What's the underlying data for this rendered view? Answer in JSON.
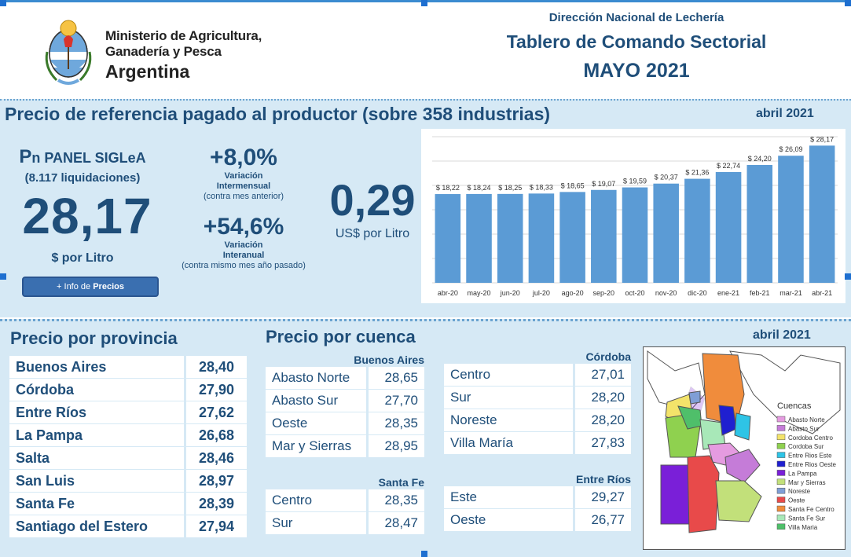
{
  "header": {
    "ministry_line1": "Ministerio de Agricultura,",
    "ministry_line2": "Ganadería y Pesca",
    "ministry_line3": "Argentina",
    "direction": "Dirección Nacional de Lechería",
    "title": "Tablero de Comando Sectorial",
    "month": "MAYO 2021"
  },
  "reference": {
    "title": "Precio de referencia pagado al productor (sobre 358 industrias)",
    "date": "abril 2021",
    "pn_prefix": "P",
    "pn_label": "n PANEL SIGLeA",
    "liquidaciones": "(8.117 liquidaciones)",
    "price": "28,17",
    "price_unit": "$ por Litro",
    "info_button_prefix": "+ Info de ",
    "info_button_bold": "Precios",
    "var_mensual": "+8,0%",
    "var_mensual_label1": "Variación",
    "var_mensual_label2": "Intermensual",
    "var_mensual_sub": "(contra mes anterior)",
    "var_anual": "+54,6%",
    "var_anual_label1": "Variación",
    "var_anual_label2": "Interanual",
    "var_anual_sub": "(contra mismo mes año pasado)",
    "usd_value": "0,29",
    "usd_unit": "US$ por Litro"
  },
  "chart_data": {
    "type": "bar",
    "categories": [
      "abr-20",
      "may-20",
      "jun-20",
      "jul-20",
      "ago-20",
      "sep-20",
      "oct-20",
      "nov-20",
      "dic-20",
      "ene-21",
      "feb-21",
      "mar-21",
      "abr-21"
    ],
    "values": [
      18.22,
      18.24,
      18.25,
      18.33,
      18.65,
      19.07,
      19.59,
      20.37,
      21.36,
      22.74,
      24.2,
      26.09,
      28.17
    ],
    "labels": [
      "$ 18,22",
      "$ 18,24",
      "$ 18,25",
      "$ 18,33",
      "$ 18,65",
      "$ 19,07",
      "$ 19,59",
      "$ 20,37",
      "$ 21,36",
      "$ 22,74",
      "$ 24,20",
      "$ 26,09",
      "$ 28,17"
    ],
    "color": "#5b9bd5",
    "grid": true
  },
  "provincia": {
    "title": "Precio por provincia",
    "rows": [
      {
        "name": "Buenos Aires",
        "value": "28,40"
      },
      {
        "name": "Córdoba",
        "value": "27,90"
      },
      {
        "name": "Entre Ríos",
        "value": "27,62"
      },
      {
        "name": "La Pampa",
        "value": "26,68"
      },
      {
        "name": "Salta",
        "value": "28,46"
      },
      {
        "name": "San Luis",
        "value": "28,97"
      },
      {
        "name": "Santa Fe",
        "value": "28,39"
      },
      {
        "name": "Santiago del Estero",
        "value": "27,94"
      }
    ]
  },
  "cuenca": {
    "title": "Precio por cuenca",
    "date": "abril 2021",
    "groups": [
      {
        "name": "Buenos Aires",
        "rows": [
          {
            "name": "Abasto Norte",
            "value": "28,65"
          },
          {
            "name": "Abasto Sur",
            "value": "27,70"
          },
          {
            "name": "Oeste",
            "value": "28,35"
          },
          {
            "name": "Mar y Sierras",
            "value": "28,95"
          }
        ]
      },
      {
        "name": "Santa Fe",
        "rows": [
          {
            "name": "Centro",
            "value": "28,35"
          },
          {
            "name": "Sur",
            "value": "28,47"
          }
        ]
      },
      {
        "name": "Córdoba",
        "rows": [
          {
            "name": "Centro",
            "value": "27,01"
          },
          {
            "name": "Sur",
            "value": "28,20"
          },
          {
            "name": "Noreste",
            "value": "28,20"
          },
          {
            "name": "Villa María",
            "value": "27,83"
          }
        ]
      },
      {
        "name": "Entre Ríos",
        "rows": [
          {
            "name": "Este",
            "value": "29,27"
          },
          {
            "name": "Oeste",
            "value": "26,77"
          }
        ]
      }
    ]
  },
  "map": {
    "legend_title": "Cuencas",
    "legend": [
      {
        "name": "Abasto Norte",
        "color": "#e59be0"
      },
      {
        "name": "Abasto Sur",
        "color": "#c57cd8"
      },
      {
        "name": "Cordoba Centro",
        "color": "#f3e36a"
      },
      {
        "name": "Cordoba Sur",
        "color": "#8fd14f"
      },
      {
        "name": "Entre Rios Este",
        "color": "#2ec4e6"
      },
      {
        "name": "Entre Rios Oeste",
        "color": "#1f1fd0"
      },
      {
        "name": "La Pampa",
        "color": "#7a1fd8"
      },
      {
        "name": "Mar y Sierras",
        "color": "#c2e07a"
      },
      {
        "name": "Noreste",
        "color": "#7f9ed6"
      },
      {
        "name": "Oeste",
        "color": "#e84a4a"
      },
      {
        "name": "Santa Fe Centro",
        "color": "#f08c3c"
      },
      {
        "name": "Santa Fe Sur",
        "color": "#a8e8b8"
      },
      {
        "name": "Villa Maria",
        "color": "#4fbf6a"
      }
    ]
  }
}
